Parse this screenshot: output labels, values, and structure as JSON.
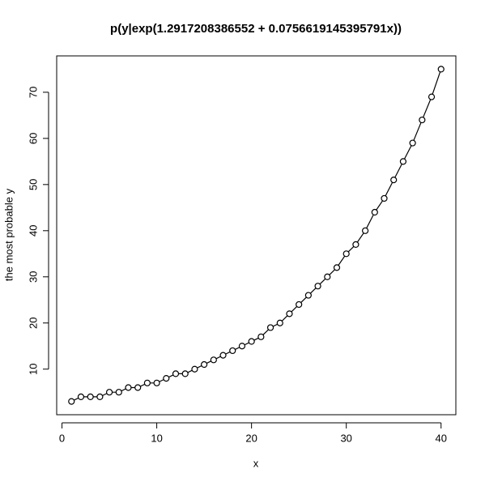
{
  "chart_data": {
    "type": "line",
    "title": "p(y|exp(1.2917208386552 + 0.0756619145395791x))",
    "x_label": "x",
    "y_label": "the most probable y",
    "x": [
      1,
      2,
      3,
      4,
      5,
      6,
      7,
      8,
      9,
      10,
      11,
      12,
      13,
      14,
      15,
      16,
      17,
      18,
      19,
      20,
      21,
      22,
      23,
      24,
      25,
      26,
      27,
      28,
      29,
      30,
      31,
      32,
      33,
      34,
      35,
      36,
      37,
      38,
      39,
      40
    ],
    "values": [
      3,
      4,
      4,
      4,
      5,
      5,
      6,
      6,
      7,
      7,
      8,
      9,
      9,
      10,
      11,
      12,
      13,
      14,
      15,
      16,
      17,
      19,
      20,
      22,
      24,
      26,
      28,
      30,
      32,
      35,
      37,
      40,
      44,
      47,
      51,
      55,
      59,
      64,
      69,
      75
    ],
    "color": "#000000",
    "xlim": [
      -0.56,
      41.56
    ],
    "ylim": [
      0.12,
      77.88
    ],
    "xticks": [
      0,
      10,
      20,
      30,
      40
    ],
    "yticks": [
      10,
      20,
      30,
      40,
      50,
      60,
      70
    ]
  }
}
